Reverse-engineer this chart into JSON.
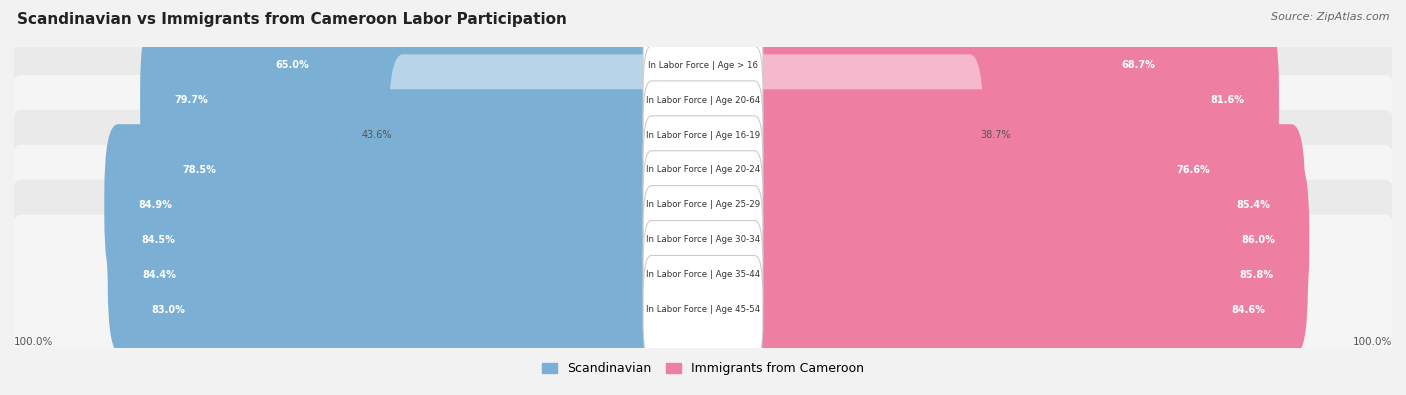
{
  "title": "Scandinavian vs Immigrants from Cameroon Labor Participation",
  "source": "Source: ZipAtlas.com",
  "categories": [
    "In Labor Force | Age > 16",
    "In Labor Force | Age 20-64",
    "In Labor Force | Age 16-19",
    "In Labor Force | Age 20-24",
    "In Labor Force | Age 25-29",
    "In Labor Force | Age 30-34",
    "In Labor Force | Age 35-44",
    "In Labor Force | Age 45-54"
  ],
  "scandinavian_values": [
    65.0,
    79.7,
    43.6,
    78.5,
    84.9,
    84.5,
    84.4,
    83.0
  ],
  "cameroon_values": [
    68.7,
    81.6,
    38.7,
    76.6,
    85.4,
    86.0,
    85.8,
    84.6
  ],
  "scandinavian_color": "#7BAFD4",
  "scandinavian_color_light": "#B8D5EA",
  "cameroon_color": "#EE7FA3",
  "cameroon_color_light": "#F5B8CC",
  "bg_color": "#F2F2F2",
  "row_bg_even": "#EAEAEA",
  "row_bg_odd": "#F5F5F5",
  "legend_scand": "Scandinavian",
  "legend_cam": "Immigrants from Cameroon",
  "bottom_label": "100.0%"
}
